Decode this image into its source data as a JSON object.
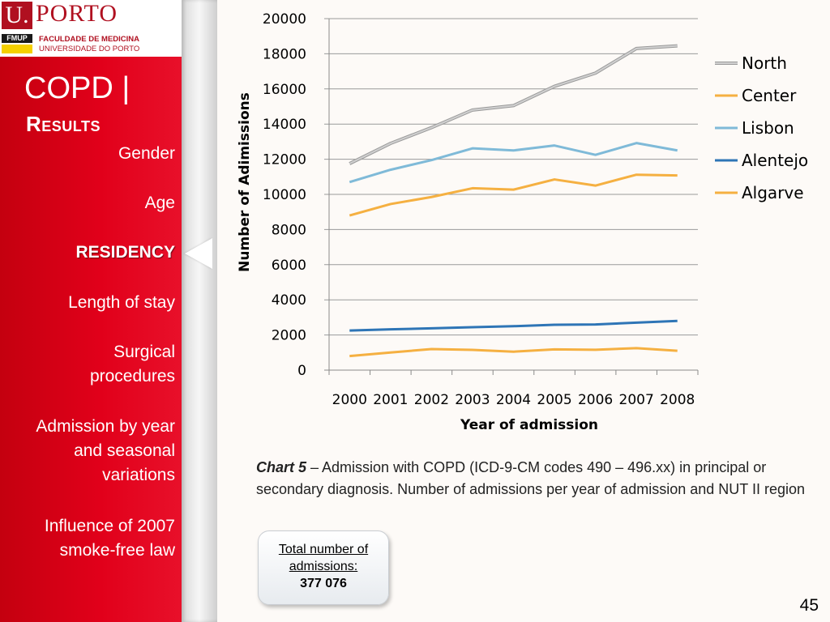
{
  "logo": {
    "letter": "U.",
    "name": "PORTO",
    "badge": "FMUP",
    "faculty": "FACULDADE DE MEDICINA",
    "university": "UNIVERSIDADE DO PORTO"
  },
  "sidebar": {
    "title": "COPD |",
    "subtitle": "Results",
    "items": [
      {
        "label": "Gender",
        "active": false
      },
      {
        "label": "Age",
        "active": false
      },
      {
        "label": "RESIDENCY",
        "active": true
      },
      {
        "label": "Length of stay",
        "active": false
      },
      {
        "label": "Surgical\nprocedures",
        "active": false
      },
      {
        "label": "Admission by year\nand seasonal\nvariations",
        "active": false
      },
      {
        "label": "Influence of 2007\nsmoke-free law",
        "active": false
      }
    ],
    "colors": {
      "background": "#e1001a",
      "text": "#ffffff"
    }
  },
  "chart_data": {
    "type": "line",
    "title": "",
    "xlabel": "Year of admission",
    "ylabel": "Number of Adimissions",
    "categories": [
      "2000",
      "2001",
      "2002",
      "2003",
      "2004",
      "2005",
      "2006",
      "2007",
      "2008"
    ],
    "ylim": [
      0,
      20000
    ],
    "yticks": [
      0,
      2000,
      4000,
      6000,
      8000,
      10000,
      12000,
      14000,
      16000,
      18000,
      20000
    ],
    "grid": true,
    "legend_position": "right",
    "series": [
      {
        "name": "North",
        "color": "#d0d0d0",
        "values": [
          11750,
          12900,
          13800,
          14800,
          15050,
          16150,
          16900,
          18300,
          18450
        ]
      },
      {
        "name": "Center",
        "color": "#f5b041",
        "values": [
          8800,
          9450,
          9850,
          10350,
          10270,
          10850,
          10500,
          11120,
          11080
        ]
      },
      {
        "name": "Lisbon",
        "color": "#7fbad8",
        "values": [
          10700,
          11400,
          11950,
          12620,
          12500,
          12780,
          12250,
          12920,
          12500
        ]
      },
      {
        "name": "Alentejo",
        "color": "#2e75b6",
        "values": [
          2250,
          2320,
          2380,
          2440,
          2500,
          2580,
          2600,
          2700,
          2800
        ]
      },
      {
        "name": "Algarve",
        "color": "#f5b041",
        "values": [
          800,
          1000,
          1200,
          1150,
          1050,
          1180,
          1160,
          1250,
          1100
        ]
      }
    ]
  },
  "caption": {
    "lead": "Chart 5",
    "text": " – Admission with COPD (ICD-9-CM codes 490 – 496.xx) in principal or secondary diagnosis. Number of admissions per year of admission and NUT II region"
  },
  "total": {
    "label": "Total number of admissions:",
    "value": "377 076"
  },
  "page_number": "45"
}
